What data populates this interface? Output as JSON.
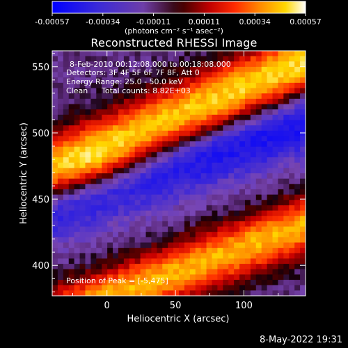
{
  "title": "Reconstructed RHESSI Image",
  "colorbar": {
    "ticks": [
      "-0.00057",
      "-0.00034",
      "-0.00011",
      "0.00011",
      "0.00034",
      "0.00057"
    ],
    "units_label": "(photons cm⁻² s⁻¹ asec⁻²)",
    "palette": [
      "#0000ff",
      "#4a2dd0",
      "#7d44b3",
      "#b4144c",
      "#ff2000",
      "#ff7a00",
      "#ffd400",
      "#ffffe0"
    ]
  },
  "image_info": {
    "time_range": "8-Feb-2010 00:12:08.000 to 00:18:08.000",
    "detectors": "Detectors: 3F 4F 5F 6F 7F 8F, Att 0",
    "energy_range": "Energy Range: 25.0 - 50.0 keV",
    "clean_label": "Clean",
    "total_counts": "Total counts: 8.82E+03",
    "peak_position": "Position of Peak = [-5,475]"
  },
  "timestamp": "8-May-2022 19:31",
  "chart_data": {
    "type": "heatmap",
    "title": "Reconstructed RHESSI Image",
    "xlabel": "Heliocentric X (arcsec)",
    "ylabel": "Heliocentric Y (arcsec)",
    "xlim": [
      -40,
      145
    ],
    "ylim": [
      377,
      562
    ],
    "x_ticks": [
      0,
      50,
      100
    ],
    "y_ticks": [
      400,
      450,
      500,
      550
    ],
    "colorbar_range": [
      -0.00057,
      0.00057
    ],
    "peak": [
      -5,
      475
    ]
  }
}
